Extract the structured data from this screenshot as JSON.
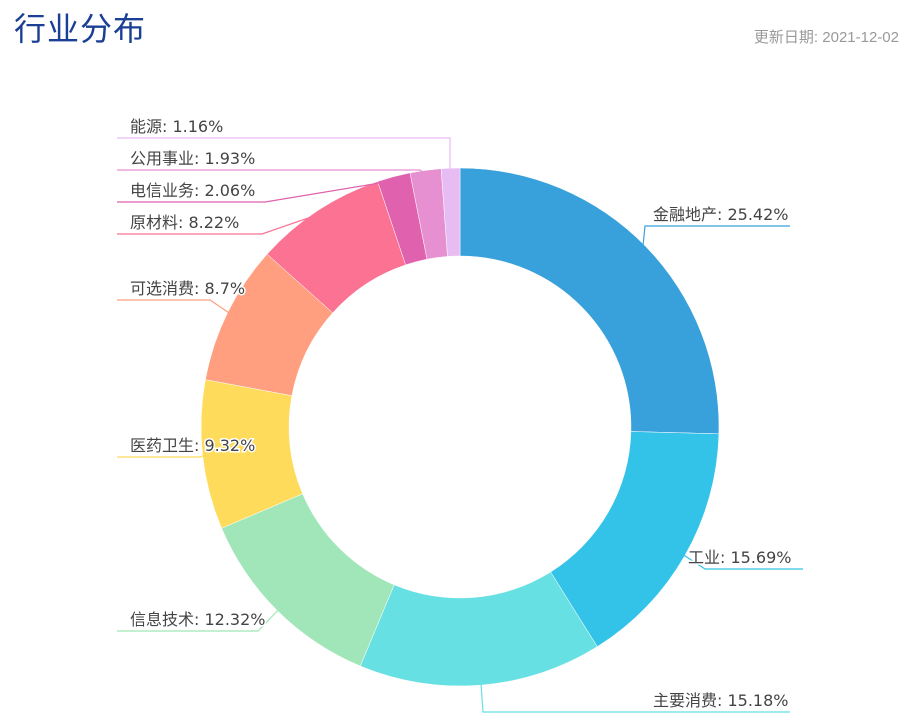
{
  "header": {
    "title": "行业分布",
    "update_label": "更新日期:",
    "update_date": "2021-12-02"
  },
  "chart_data": {
    "type": "pie",
    "variant": "donut",
    "categories": [
      "金融地产",
      "工业",
      "主要消费",
      "信息技术",
      "医药卫生",
      "可选消费",
      "原材料",
      "电信业务",
      "公用事业",
      "能源"
    ],
    "values": [
      25.42,
      15.69,
      15.18,
      12.32,
      9.32,
      8.7,
      8.22,
      2.06,
      1.93,
      1.16
    ],
    "unit": "%",
    "colors": [
      "#38a1db",
      "#33c3e8",
      "#66e0e3",
      "#a0e6b8",
      "#ffdb5c",
      "#ff9f7f",
      "#fb7293",
      "#e062ae",
      "#e690d1",
      "#e7bcf3"
    ],
    "labels": [
      "金融地产: 25.42%",
      "工业: 15.69%",
      "主要消费: 15.18%",
      "信息技术: 12.32%",
      "医药卫生: 9.32%",
      "可选消费: 8.7%",
      "原材料: 8.22%",
      "电信业务: 2.06%",
      "公用事业: 1.93%",
      "能源: 1.16%"
    ],
    "legend": "none"
  }
}
